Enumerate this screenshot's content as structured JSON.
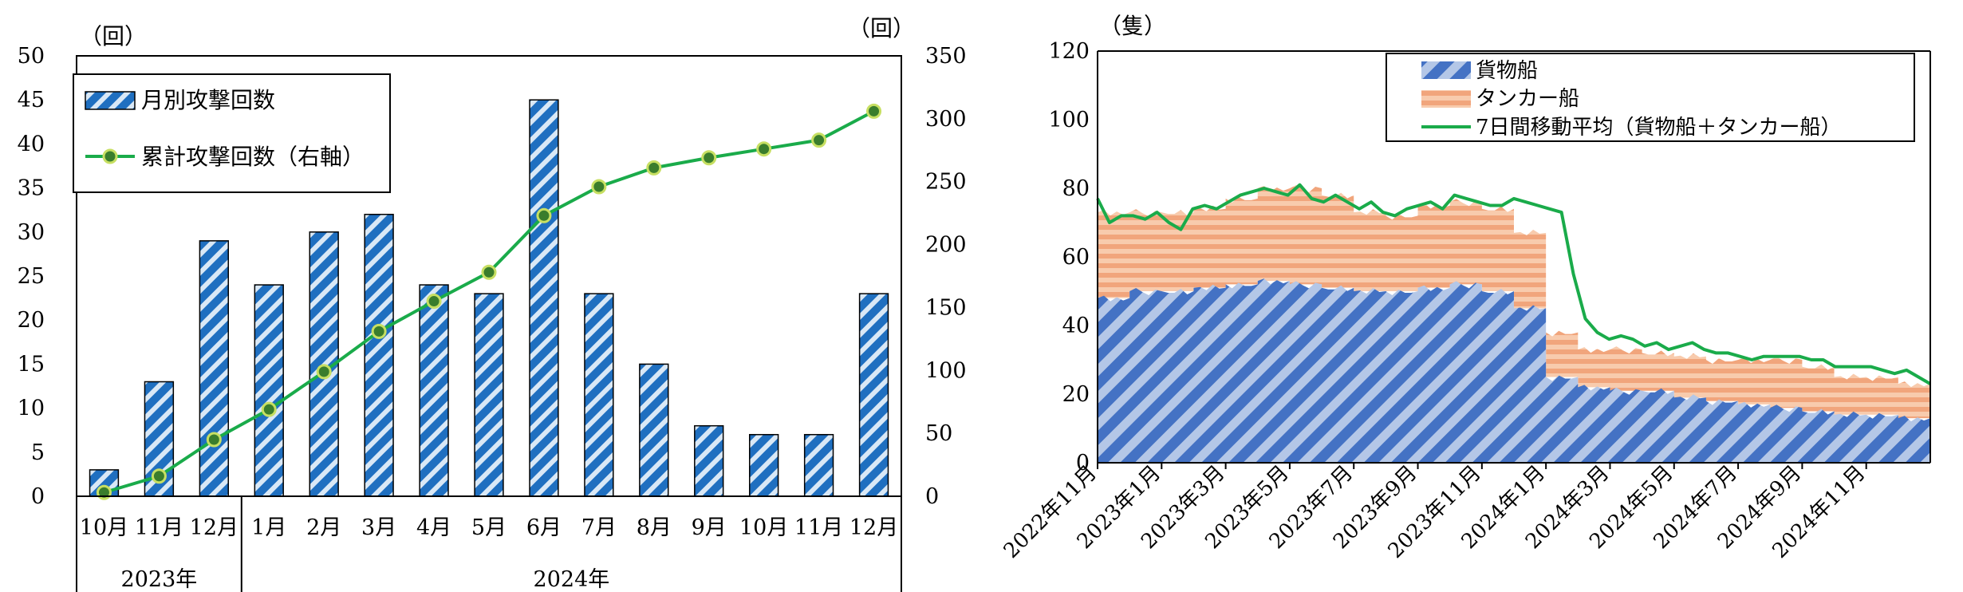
{
  "chart_data": [
    {
      "type": "bar+line",
      "left_unit": "（回）",
      "right_unit": "（回）",
      "y_left": {
        "min": 0,
        "max": 50,
        "step": 5
      },
      "y_right": {
        "min": 0,
        "max": 350,
        "step": 50
      },
      "categories": [
        "10月",
        "11月",
        "12月",
        "1月",
        "2月",
        "3月",
        "4月",
        "5月",
        "6月",
        "7月",
        "8月",
        "9月",
        "10月",
        "11月",
        "12月"
      ],
      "year_groups": [
        {
          "label": "2023年",
          "count": 3
        },
        {
          "label": "2024年",
          "count": 12
        }
      ],
      "series": [
        {
          "name": "月別攻撃回数",
          "type": "bar",
          "axis": "left",
          "color": "#1f6fc0",
          "values": [
            3,
            13,
            29,
            24,
            30,
            32,
            24,
            23,
            45,
            23,
            15,
            8,
            7,
            7,
            23
          ]
        },
        {
          "name": "累計攻撃回数（右軸）",
          "type": "line",
          "axis": "right",
          "color": "#1aab4a",
          "values": [
            3,
            16,
            45,
            69,
            99,
            131,
            155,
            178,
            223,
            246,
            261,
            269,
            276,
            283,
            306
          ]
        }
      ],
      "legend_position": "top-left"
    },
    {
      "type": "area+line",
      "unit": "（隻）",
      "y": {
        "min": 0,
        "max": 120,
        "step": 20
      },
      "x_ticks": [
        "2022年11月",
        "2023年1月",
        "2023年3月",
        "2023年5月",
        "2023年7月",
        "2023年9月",
        "2023年11月",
        "2024年1月",
        "2024年3月",
        "2024年5月",
        "2024年7月",
        "2024年9月",
        "2024年11月"
      ],
      "series": [
        {
          "name": "貨物船",
          "type": "stacked-bar",
          "color": "#4472c4",
          "monthly_average": [
            48,
            50,
            50,
            51,
            52,
            53,
            52,
            51,
            50,
            50,
            51,
            52,
            50,
            45,
            25,
            22,
            21,
            21,
            19,
            18,
            17,
            16,
            15,
            14,
            14,
            13
          ]
        },
        {
          "name": "タンカー船",
          "type": "stacked-bar",
          "color": "#f4b183",
          "monthly_average": [
            25,
            23,
            23,
            23,
            25,
            27,
            28,
            27,
            23,
            22,
            24,
            24,
            24,
            22,
            13,
            11,
            12,
            11,
            12,
            12,
            13,
            14,
            13,
            11,
            11,
            10
          ]
        },
        {
          "name": "7日間移動平均（貨物船＋タンカー船）",
          "type": "line",
          "color": "#1aab4a",
          "values": [
            77,
            70,
            72,
            72,
            71,
            73,
            70,
            68,
            74,
            75,
            74,
            76,
            78,
            79,
            80,
            79,
            78,
            81,
            77,
            76,
            78,
            76,
            74,
            76,
            73,
            72,
            74,
            75,
            76,
            74,
            78,
            77,
            76,
            75,
            75,
            77,
            76,
            75,
            74,
            73,
            55,
            42,
            38,
            36,
            37,
            36,
            34,
            35,
            33,
            34,
            35,
            33,
            32,
            32,
            31,
            30,
            31,
            31,
            31,
            31,
            30,
            30,
            28,
            28,
            28,
            28,
            27,
            26,
            27,
            25,
            23
          ]
        }
      ],
      "legend_position": "top-right"
    }
  ]
}
